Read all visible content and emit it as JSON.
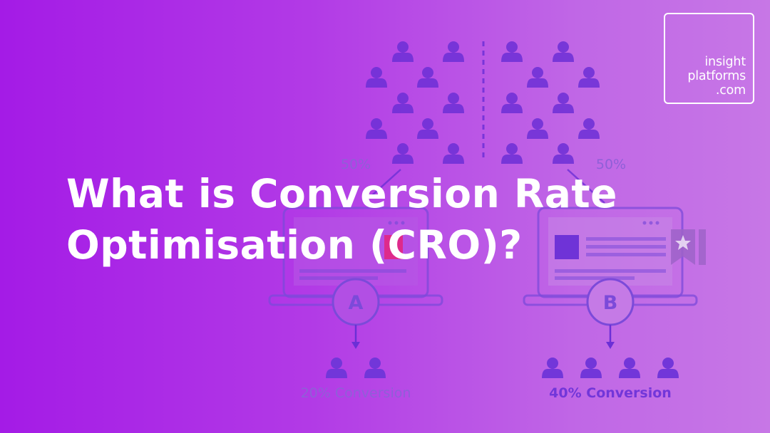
{
  "logo": {
    "lines": [
      "insight",
      "platforms",
      ".com"
    ]
  },
  "headline": {
    "line1": "What is Conversion Rate",
    "line2": "Optimisation (CRO)?"
  },
  "illustration": {
    "split_left_label": "50%",
    "split_right_label": "50%",
    "variant_a_letter": "A",
    "variant_b_letter": "B",
    "variant_a_conversion": "20% Conversion",
    "variant_b_conversion": "40% Conversion"
  },
  "colors": {
    "background_left": "#a41be6",
    "background_right": "#c777e6",
    "illustration_purple": "#7236d9",
    "accent_pink": "#e5237b",
    "text": "#ffffff"
  },
  "icons": [
    "person-icon",
    "laptop-icon",
    "bookmark-star-icon",
    "arrow-down-icon",
    "image-placeholder-icon"
  ]
}
